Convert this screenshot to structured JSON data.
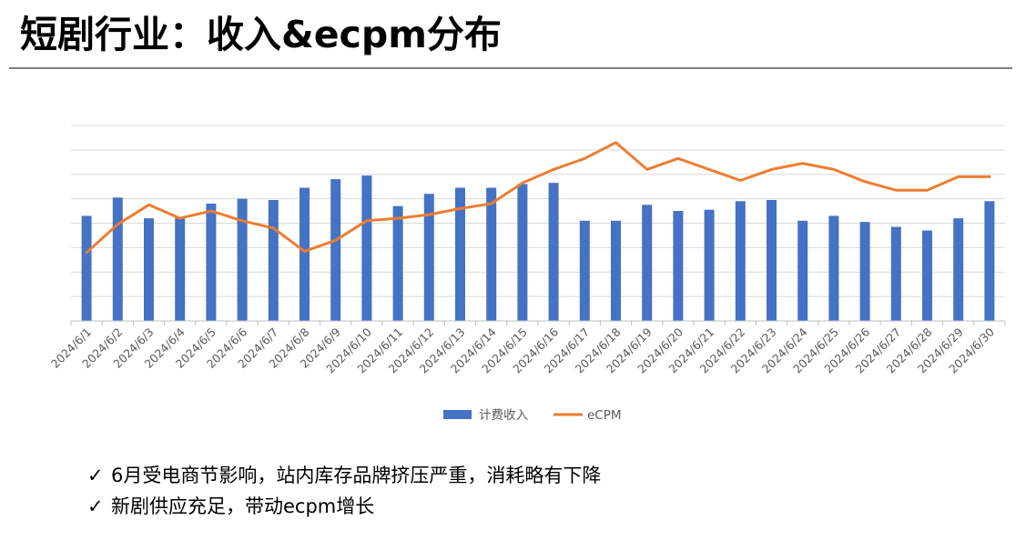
{
  "title": "短剧行业：收入&ecpm分布",
  "check_icon": "✓",
  "bullets": [
    "6月受电商节影响，站内库存品牌挤压严重，消耗略有下降",
    "新剧供应充足，带动ecpm增长"
  ],
  "chart_data": {
    "type": "bar",
    "categories": [
      "2024/6/1",
      "2024/6/2",
      "2024/6/3",
      "2024/6/4",
      "2024/6/5",
      "2024/6/6",
      "2024/6/7",
      "2024/6/8",
      "2024/6/9",
      "2024/6/10",
      "2024/6/11",
      "2024/6/12",
      "2024/6/13",
      "2024/6/14",
      "2024/6/15",
      "2024/6/16",
      "2024/6/17",
      "2024/6/18",
      "2024/6/19",
      "2024/6/20",
      "2024/6/21",
      "2024/6/22",
      "2024/6/23",
      "2024/6/24",
      "2024/6/25",
      "2024/6/26",
      "2024/6/27",
      "2024/6/28",
      "2024/6/29",
      "2024/6/30"
    ],
    "series": [
      {
        "name": "计费收入",
        "type": "bar",
        "color": "#4472c4",
        "values": [
          4.3,
          5.05,
          4.2,
          4.25,
          4.8,
          5.0,
          4.95,
          5.45,
          5.8,
          5.95,
          4.7,
          5.2,
          5.45,
          5.45,
          5.6,
          5.65,
          4.1,
          4.1,
          4.75,
          4.5,
          4.55,
          4.9,
          4.95,
          4.1,
          4.3,
          4.05,
          3.85,
          3.7,
          4.2,
          4.9
        ]
      },
      {
        "name": "eCPM",
        "type": "line",
        "color": "#ed7d31",
        "values": [
          2.8,
          3.95,
          4.75,
          4.2,
          4.5,
          4.1,
          3.8,
          2.85,
          3.3,
          4.1,
          4.2,
          4.35,
          4.6,
          4.8,
          5.65,
          6.2,
          6.65,
          7.3,
          6.2,
          6.65,
          6.2,
          5.75,
          6.2,
          6.45,
          6.2,
          5.7,
          5.35,
          5.35,
          5.9,
          5.9
        ]
      }
    ],
    "ylim": [
      0,
      8
    ],
    "yticks": [
      0,
      1,
      2,
      3,
      4,
      5,
      6,
      7,
      8
    ],
    "show_y_labels": false,
    "grid": true,
    "legend": "bottom"
  }
}
